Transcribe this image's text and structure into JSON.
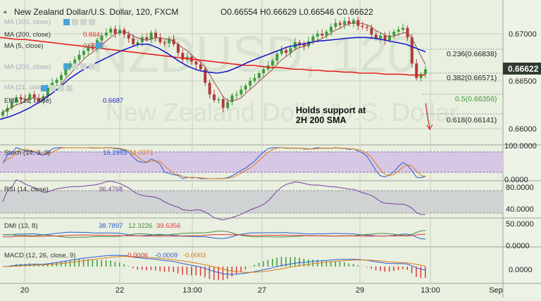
{
  "header": {
    "symbol_title": "New Zealand Dollar/U.S. Dollar, 120, FXCM",
    "ohlc": "O0.66554  H0.66629  L0.66546  C0.66622"
  },
  "indicators": {
    "ma200_label": "MA (200, close)",
    "ma200_value": "0.664",
    "ma5_label": "MA (5, close)",
    "ma5_value": "0.6658",
    "ma_extra1": "MA (100, close)",
    "ma_extra2": "MA (200, close)",
    "ma_extra3": "MA (21, close)",
    "ema21_label": "EMA (21, close)",
    "ema21_value": "0.6687"
  },
  "annotation": {
    "line1": "Holds support at",
    "line2": "2H 200 SMA"
  },
  "watermark": {
    "big": "NZDUSD, 120",
    "sub": "New Zealand Dollar/U.S. Dollar"
  },
  "price_badge": "0.66622",
  "fib_levels": [
    {
      "label": "0.236(0.66838)",
      "price": 0.66838
    },
    {
      "label": "0.382(0.66571)",
      "price": 0.66571
    },
    {
      "label": "0.5(0.66356)",
      "price": 0.66356
    },
    {
      "label": "0.618(0.66141)",
      "price": 0.66141
    }
  ],
  "stoch": {
    "label": "Stoch (14, 3, 3)",
    "v1": "16.2983",
    "v2": "11.0371",
    "ticks": [
      "100.0000",
      "0.0000"
    ]
  },
  "rsi": {
    "label": "RSI (14, close)",
    "v1": "36.4768",
    "ticks": [
      "80.0000",
      "40.0000"
    ]
  },
  "dmi": {
    "label": "DMI (13, 8)",
    "v1": "38.7897",
    "v2": "12.3226",
    "v3": "39.6356",
    "ticks": [
      "50.0000",
      "0.0000"
    ]
  },
  "macd": {
    "label": "MACD (12, 26, close, 9)",
    "v1": "-0.0006",
    "v2": "-0.0009",
    "v3": "-0.0003",
    "ticks": [
      "0.0000"
    ]
  },
  "colors": {
    "bg": "#e9f0e0",
    "up": "#3c9b3c",
    "down": "#b33a3a",
    "sma200": "#e8201b",
    "ema": "#1c1cc8",
    "ma5": "#9a4a4a",
    "stoch_band": "#d6c8e4",
    "rsi_band": "#cfd3d3",
    "grid": "#c5cfbd",
    "badge": "#2f3b2f",
    "blue": "#2a5cd6",
    "orange": "#e07a16",
    "purple": "#7a3fa0",
    "green_dmi": "#4b8a3a",
    "red_dmi": "#d93a3a",
    "annot_arrow": "#d12a2a"
  },
  "chart_data": {
    "type": "candlestick",
    "title": "New Zealand Dollar/U.S. Dollar, 120, FXCM",
    "x_tick_labels": [
      "20",
      "22",
      "13:00",
      "27",
      "29",
      "13:00",
      "Sep"
    ],
    "y_tick_labels": [
      "0.67000",
      "0.66500",
      "0.66000"
    ],
    "ylim": [
      0.6588,
      0.6728
    ],
    "last": {
      "open": 0.66554,
      "high": 0.66629,
      "low": 0.66546,
      "close": 0.66622
    },
    "closes": [
      0.6618,
      0.6622,
      0.6628,
      0.6633,
      0.6631,
      0.663,
      0.6636,
      0.6632,
      0.6629,
      0.6634,
      0.6643,
      0.6648,
      0.6651,
      0.6656,
      0.6664,
      0.6668,
      0.6672,
      0.6677,
      0.6681,
      0.6685,
      0.6683,
      0.6692,
      0.6697,
      0.67,
      0.6704,
      0.6699,
      0.6703,
      0.6698,
      0.6694,
      0.6688,
      0.669,
      0.6695,
      0.6693,
      0.67,
      0.6695,
      0.669,
      0.6689,
      0.6693,
      0.6688,
      0.6679,
      0.6672,
      0.6675,
      0.667,
      0.6667,
      0.6662,
      0.6648,
      0.6636,
      0.663,
      0.6631,
      0.6622,
      0.6628,
      0.6635,
      0.6636,
      0.6641,
      0.6645,
      0.665,
      0.6653,
      0.6658,
      0.6662,
      0.6666,
      0.6671,
      0.6678,
      0.6682,
      0.6679,
      0.6684,
      0.669,
      0.6688,
      0.6686,
      0.6691,
      0.6696,
      0.6699,
      0.6697,
      0.6701,
      0.6706,
      0.671,
      0.6708,
      0.6712,
      0.6709,
      0.6713,
      0.6707,
      0.6706,
      0.6705,
      0.6698,
      0.6694,
      0.6697,
      0.6692,
      0.6697,
      0.6701,
      0.6703,
      0.6705,
      0.6695,
      0.6668,
      0.6653,
      0.6657,
      0.6662
    ],
    "sma200": [
      0.6695,
      0.6694,
      0.6693,
      0.6693,
      0.6692,
      0.6691,
      0.669,
      0.6689,
      0.6688,
      0.6687,
      0.6686,
      0.6685,
      0.6684,
      0.6683,
      0.6682,
      0.6681,
      0.668,
      0.6679,
      0.6678,
      0.6677,
      0.6676,
      0.6675,
      0.6674,
      0.6673,
      0.6672,
      0.6671,
      0.667,
      0.6669,
      0.6668,
      0.6667,
      0.6666,
      0.6666,
      0.6665,
      0.6664,
      0.6664,
      0.6663,
      0.6662,
      0.6662,
      0.6661,
      0.6661,
      0.666,
      0.666,
      0.6659,
      0.6659,
      0.6658,
      0.6658,
      0.6658,
      0.6657,
      0.6657,
      0.6657,
      0.6656,
      0.6656,
      0.6656
    ],
    "ema21": [
      0.661,
      0.6613,
      0.6617,
      0.6622,
      0.6628,
      0.6635,
      0.6643,
      0.6652,
      0.6659,
      0.6665,
      0.667,
      0.6675,
      0.668,
      0.6684,
      0.6688,
      0.6688,
      0.6684,
      0.6678,
      0.6671,
      0.6665,
      0.6661,
      0.6659,
      0.6658,
      0.666,
      0.6664,
      0.6669,
      0.6673,
      0.6677,
      0.6681,
      0.6685,
      0.6687,
      0.6689,
      0.6691,
      0.6692,
      0.6693,
      0.6694,
      0.6695,
      0.6695,
      0.6694,
      0.6692,
      0.669,
      0.6688,
      0.6684,
      0.668
    ]
  }
}
